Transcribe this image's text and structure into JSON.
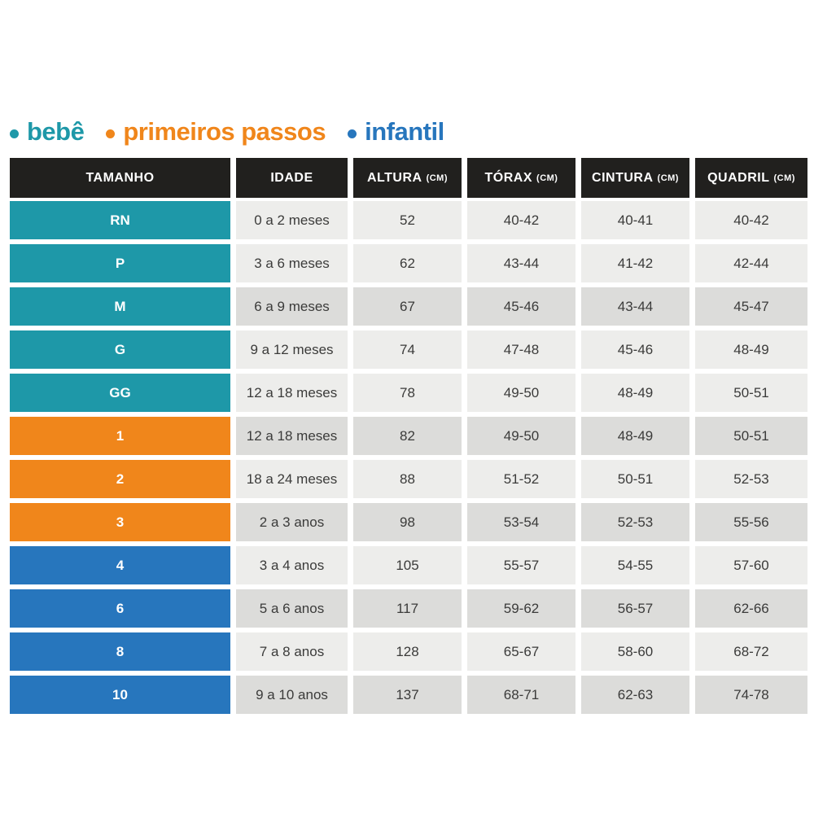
{
  "legend": {
    "items": [
      {
        "label": "bebê",
        "group": "bebe"
      },
      {
        "label": "primeiros passos",
        "group": "primeiros_passos"
      },
      {
        "label": "infantil",
        "group": "infantil"
      }
    ]
  },
  "colors": {
    "bebe": "#1E98A8",
    "primeiros_passos": "#F0861B",
    "infantil": "#2776BD",
    "header_bg": "#21201E",
    "row_light": "#EDEDEB",
    "row_dark": "#DCDCDA",
    "cell_text": "#3B3B3A"
  },
  "chart_data": {
    "type": "table",
    "title": "",
    "columns": [
      {
        "label": "TAMANHO",
        "unit": ""
      },
      {
        "label": "IDADE",
        "unit": ""
      },
      {
        "label": "ALTURA",
        "unit": "(CM)"
      },
      {
        "label": "TÓRAX",
        "unit": "(CM)"
      },
      {
        "label": "CINTURA",
        "unit": "(CM)"
      },
      {
        "label": "QUADRIL",
        "unit": "(CM)"
      }
    ],
    "rows": [
      {
        "size": "RN",
        "group": "bebe",
        "shade": "light",
        "idade": "0 a 2 meses",
        "altura": "52",
        "torax": "40-42",
        "cintura": "40-41",
        "quadril": "40-42"
      },
      {
        "size": "P",
        "group": "bebe",
        "shade": "light",
        "idade": "3 a 6 meses",
        "altura": "62",
        "torax": "43-44",
        "cintura": "41-42",
        "quadril": "42-44"
      },
      {
        "size": "M",
        "group": "bebe",
        "shade": "dark",
        "idade": "6 a 9 meses",
        "altura": "67",
        "torax": "45-46",
        "cintura": "43-44",
        "quadril": "45-47"
      },
      {
        "size": "G",
        "group": "bebe",
        "shade": "light",
        "idade": "9 a 12 meses",
        "altura": "74",
        "torax": "47-48",
        "cintura": "45-46",
        "quadril": "48-49"
      },
      {
        "size": "GG",
        "group": "bebe",
        "shade": "light",
        "idade": "12 a 18 meses",
        "altura": "78",
        "torax": "49-50",
        "cintura": "48-49",
        "quadril": "50-51"
      },
      {
        "size": "1",
        "group": "primeiros_passos",
        "shade": "dark",
        "idade": "12 a 18 meses",
        "altura": "82",
        "torax": "49-50",
        "cintura": "48-49",
        "quadril": "50-51"
      },
      {
        "size": "2",
        "group": "primeiros_passos",
        "shade": "light",
        "idade": "18 a 24 meses",
        "altura": "88",
        "torax": "51-52",
        "cintura": "50-51",
        "quadril": "52-53"
      },
      {
        "size": "3",
        "group": "primeiros_passos",
        "shade": "dark",
        "idade": "2 a 3 anos",
        "altura": "98",
        "torax": "53-54",
        "cintura": "52-53",
        "quadril": "55-56"
      },
      {
        "size": "4",
        "group": "infantil",
        "shade": "light",
        "idade": "3 a 4 anos",
        "altura": "105",
        "torax": "55-57",
        "cintura": "54-55",
        "quadril": "57-60"
      },
      {
        "size": "6",
        "group": "infantil",
        "shade": "dark",
        "idade": "5 a 6 anos",
        "altura": "117",
        "torax": "59-62",
        "cintura": "56-57",
        "quadril": "62-66"
      },
      {
        "size": "8",
        "group": "infantil",
        "shade": "light",
        "idade": "7 a 8 anos",
        "altura": "128",
        "torax": "65-67",
        "cintura": "58-60",
        "quadril": "68-72"
      },
      {
        "size": "10",
        "group": "infantil",
        "shade": "dark",
        "idade": "9 a 10 anos",
        "altura": "137",
        "torax": "68-71",
        "cintura": "62-63",
        "quadril": "74-78"
      }
    ]
  }
}
